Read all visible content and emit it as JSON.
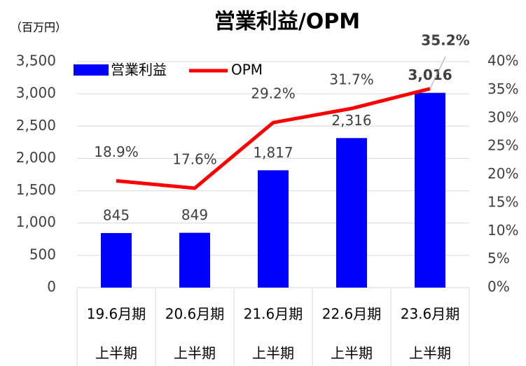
{
  "chart_data": {
    "type": "bar_line",
    "title": "営業利益/OPM",
    "y_label": "（百万円）",
    "categories": [
      [
        "19.6月期",
        "上半期"
      ],
      [
        "20.6月期",
        "上半期"
      ],
      [
        "21.6月期",
        "上半期"
      ],
      [
        "22.6月期",
        "上半期"
      ],
      [
        "23.6月期",
        "上半期"
      ]
    ],
    "series": [
      {
        "name": "営業利益",
        "type": "bar",
        "color": "#0000ff",
        "values": [
          845,
          849,
          1817,
          2316,
          3016
        ],
        "value_labels": [
          "845",
          "849",
          "1,817",
          "2,316",
          "3,016"
        ]
      },
      {
        "name": "OPM",
        "type": "line",
        "axis": "y2",
        "color": "#ff0000",
        "values": [
          18.9,
          17.6,
          29.2,
          31.7,
          35.2
        ],
        "value_labels": [
          "18.9%",
          "17.6%",
          "29.2%",
          "31.7%",
          "35.2%"
        ]
      }
    ],
    "ylim": [
      0,
      3500
    ],
    "yticks": [
      0,
      500,
      {
        "value": 1000,
        "label": "1,000"
      },
      {
        "value": 1500,
        "label": "1,500"
      },
      {
        "value": 2000,
        "label": "2,000"
      },
      {
        "value": 2500,
        "label": "2,500"
      },
      {
        "value": 3000,
        "label": "3,000"
      },
      {
        "value": 3500,
        "label": "3,500"
      }
    ],
    "y2lim": [
      0,
      40
    ],
    "y2ticks": [
      {
        "value": 0,
        "label": "0%"
      },
      {
        "value": 5,
        "label": "5%"
      },
      {
        "value": 10,
        "label": "10%"
      },
      {
        "value": 15,
        "label": "15%"
      },
      {
        "value": 20,
        "label": "20%"
      },
      {
        "value": 25,
        "label": "25%"
      },
      {
        "value": 30,
        "label": "30%"
      },
      {
        "value": 35,
        "label": "35%"
      },
      {
        "value": 40,
        "label": "40%"
      }
    ],
    "grid": true,
    "legend": "top-left"
  }
}
